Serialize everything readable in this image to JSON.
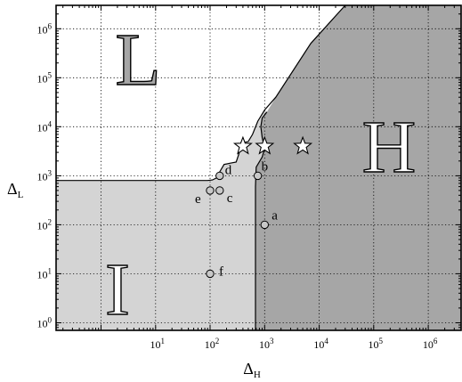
{
  "chart_data": {
    "type": "scatter",
    "xscale": "log",
    "yscale": "log",
    "xlim": [
      0.15,
      4000000
    ],
    "ylim": [
      0.7,
      3000000
    ],
    "xticks": [
      10,
      100,
      1000,
      10000,
      100000,
      1000000
    ],
    "yticks": [
      1,
      10,
      100,
      1000,
      10000,
      100000,
      1000000
    ],
    "xlabel": {
      "main": "Δ",
      "sub": "H"
    },
    "ylabel": {
      "main": "Δ",
      "sub": "L"
    },
    "grid": true,
    "regions": [
      {
        "label": "L",
        "fill": "#ffffff",
        "label_color": "#a6a6a6"
      },
      {
        "label": "I",
        "fill": "#d4d4d4",
        "label_color": "#ffffff"
      },
      {
        "label": "H",
        "fill": "#a6a6a6",
        "label_color": "#ffffff"
      }
    ],
    "points": [
      {
        "label": "a",
        "x": 1000,
        "y": 100
      },
      {
        "label": "b",
        "x": 750,
        "y": 1000
      },
      {
        "label": "c",
        "x": 150,
        "y": 500
      },
      {
        "label": "d",
        "x": 150,
        "y": 1000
      },
      {
        "label": "e",
        "x": 100,
        "y": 500
      },
      {
        "label": "f",
        "x": 100,
        "y": 10
      }
    ],
    "stars": [
      {
        "x": 400,
        "y": 4000
      },
      {
        "x": 1000,
        "y": 4000
      },
      {
        "x": 5000,
        "y": 4000
      }
    ],
    "colors": {
      "point_fill": "#c8c8c8",
      "star_fill": "#ffffff",
      "grid": "#000000"
    }
  }
}
